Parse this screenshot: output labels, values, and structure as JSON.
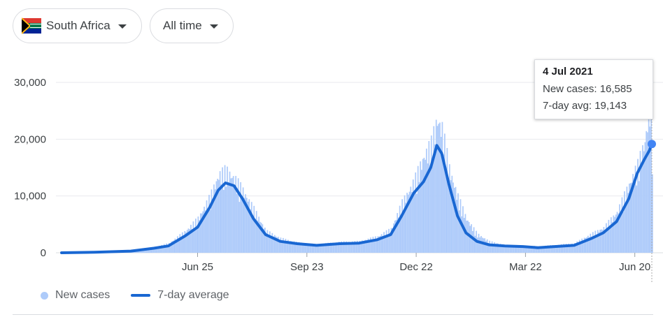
{
  "filters": {
    "country_label": "South Africa",
    "time_label": "All time",
    "flag_icon": "south-africa-flag-icon"
  },
  "tooltip": {
    "date": "4 Jul 2021",
    "new_cases_label": "New cases:",
    "new_cases_value": "16,585",
    "avg_label": "7-day avg:",
    "avg_value": "19,143"
  },
  "legend": {
    "new_cases": "New cases",
    "avg": "7-day average"
  },
  "colors": {
    "bars": "#aecbfa",
    "line": "#1967d2",
    "marker": "#4285f4",
    "grid": "#e8eaed"
  },
  "chart_data": {
    "type": "bar",
    "title": "",
    "xlabel": "",
    "ylabel": "",
    "ylim": [
      0,
      30000
    ],
    "yticks": [
      0,
      10000,
      20000,
      30000
    ],
    "ytick_labels": [
      "0",
      "10,000",
      "20,000",
      "30,000"
    ],
    "xtick_labels": [
      "Jun 25",
      "Sep 23",
      "Dec 22",
      "Mar 22",
      "Jun 20"
    ],
    "xtick_dates": [
      "2020-06-25",
      "2020-09-23",
      "2020-12-22",
      "2021-03-22",
      "2021-06-20"
    ],
    "date_range": [
      "2020-03-05",
      "2021-07-04"
    ],
    "grid": true,
    "legend_position": "bottom-left",
    "series": [
      {
        "name": "New cases",
        "kind": "bar",
        "points": [
          [
            "2020-03-05",
            0
          ],
          [
            "2020-04-01",
            150
          ],
          [
            "2020-05-01",
            300
          ],
          [
            "2020-05-20",
            900
          ],
          [
            "2020-06-01",
            1500
          ],
          [
            "2020-06-15",
            3500
          ],
          [
            "2020-06-25",
            5500
          ],
          [
            "2020-07-05",
            9000
          ],
          [
            "2020-07-12",
            12500
          ],
          [
            "2020-07-18",
            13200
          ],
          [
            "2020-07-25",
            12000
          ],
          [
            "2020-08-01",
            10000
          ],
          [
            "2020-08-10",
            7000
          ],
          [
            "2020-08-20",
            3500
          ],
          [
            "2020-09-01",
            2300
          ],
          [
            "2020-09-15",
            1600
          ],
          [
            "2020-10-01",
            1300
          ],
          [
            "2020-10-20",
            1700
          ],
          [
            "2020-11-05",
            1800
          ],
          [
            "2020-11-20",
            2600
          ],
          [
            "2020-12-01",
            3800
          ],
          [
            "2020-12-10",
            8000
          ],
          [
            "2020-12-20",
            11500
          ],
          [
            "2020-12-28",
            15500
          ],
          [
            "2021-01-03",
            17500
          ],
          [
            "2021-01-08",
            21500
          ],
          [
            "2021-01-12",
            20000
          ],
          [
            "2021-01-18",
            13500
          ],
          [
            "2021-01-25",
            9000
          ],
          [
            "2021-02-01",
            5500
          ],
          [
            "2021-02-10",
            3000
          ],
          [
            "2021-02-20",
            1800
          ],
          [
            "2021-03-05",
            1200
          ],
          [
            "2021-03-20",
            1100
          ],
          [
            "2021-04-01",
            1000
          ],
          [
            "2021-04-15",
            1200
          ],
          [
            "2021-05-01",
            1500
          ],
          [
            "2021-05-15",
            3000
          ],
          [
            "2021-05-25",
            4000
          ],
          [
            "2021-06-05",
            6500
          ],
          [
            "2021-06-15",
            11000
          ],
          [
            "2021-06-22",
            14000
          ],
          [
            "2021-06-28",
            18000
          ],
          [
            "2021-07-02",
            24000
          ],
          [
            "2021-07-04",
            16585
          ]
        ]
      },
      {
        "name": "7-day average",
        "kind": "line",
        "points": [
          [
            "2020-03-05",
            0
          ],
          [
            "2020-04-01",
            100
          ],
          [
            "2020-05-01",
            300
          ],
          [
            "2020-05-20",
            800
          ],
          [
            "2020-06-01",
            1200
          ],
          [
            "2020-06-15",
            3000
          ],
          [
            "2020-06-25",
            4500
          ],
          [
            "2020-07-05",
            8000
          ],
          [
            "2020-07-12",
            11000
          ],
          [
            "2020-07-18",
            12300
          ],
          [
            "2020-07-25",
            11800
          ],
          [
            "2020-08-01",
            9500
          ],
          [
            "2020-08-10",
            6000
          ],
          [
            "2020-08-20",
            3200
          ],
          [
            "2020-09-01",
            2000
          ],
          [
            "2020-09-15",
            1600
          ],
          [
            "2020-10-01",
            1300
          ],
          [
            "2020-10-20",
            1600
          ],
          [
            "2020-11-05",
            1700
          ],
          [
            "2020-11-20",
            2300
          ],
          [
            "2020-12-01",
            3200
          ],
          [
            "2020-12-10",
            6500
          ],
          [
            "2020-12-20",
            10500
          ],
          [
            "2020-12-28",
            12500
          ],
          [
            "2021-01-03",
            15000
          ],
          [
            "2021-01-08",
            18900
          ],
          [
            "2021-01-12",
            17500
          ],
          [
            "2021-01-18",
            12000
          ],
          [
            "2021-01-25",
            6500
          ],
          [
            "2021-02-01",
            3500
          ],
          [
            "2021-02-10",
            2000
          ],
          [
            "2021-02-20",
            1400
          ],
          [
            "2021-03-05",
            1200
          ],
          [
            "2021-03-20",
            1100
          ],
          [
            "2021-04-01",
            900
          ],
          [
            "2021-04-15",
            1100
          ],
          [
            "2021-05-01",
            1300
          ],
          [
            "2021-05-15",
            2500
          ],
          [
            "2021-05-25",
            3500
          ],
          [
            "2021-06-05",
            5500
          ],
          [
            "2021-06-15",
            9500
          ],
          [
            "2021-06-22",
            14000
          ],
          [
            "2021-06-28",
            16500
          ],
          [
            "2021-07-02",
            18000
          ],
          [
            "2021-07-04",
            19143
          ]
        ]
      }
    ]
  }
}
